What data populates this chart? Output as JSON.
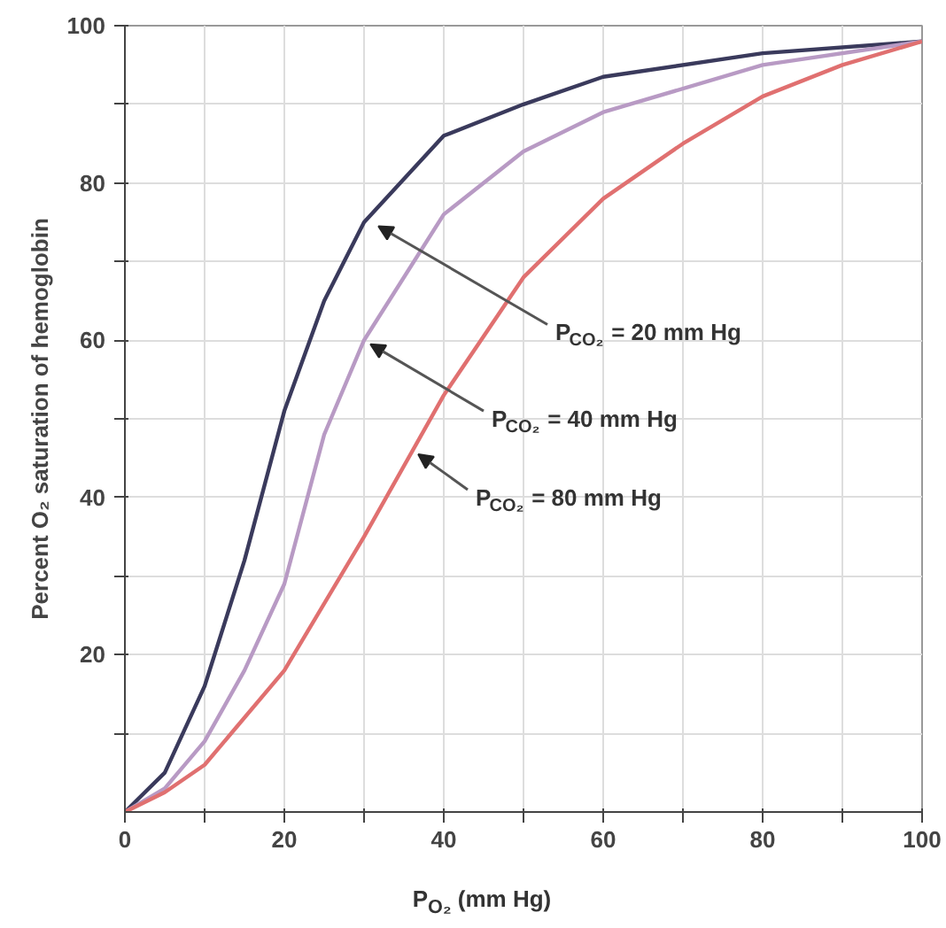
{
  "chart_data": {
    "type": "line",
    "xlabel": "P$_{O₂}$ (mm Hg)",
    "ylabel": "Percent O₂ saturation of hemoglobin",
    "xlim": [
      0,
      100
    ],
    "ylim": [
      0,
      100
    ],
    "xticks": [
      0,
      {
        "value": 10,
        "label": null
      },
      20,
      {
        "value": 30,
        "label": null
      },
      40,
      {
        "value": 50,
        "label": null
      },
      60,
      {
        "value": 70,
        "label": null
      },
      80,
      {
        "value": 90,
        "label": null
      },
      100
    ],
    "yticks": [
      {
        "value": 10,
        "label": null
      },
      20,
      {
        "value": 30,
        "label": null
      },
      40,
      {
        "value": 50,
        "label": null
      },
      60,
      {
        "value": 70,
        "label": null
      },
      80,
      {
        "value": 90,
        "label": null
      },
      100
    ],
    "grid": true,
    "marker": "none",
    "line_style": "solid",
    "series": [
      {
        "color": "#3a3a5c",
        "x": [
          0,
          5,
          10,
          15,
          20,
          25,
          30,
          40,
          50,
          60,
          80,
          100
        ],
        "values": [
          0,
          5,
          16,
          32,
          51,
          65,
          75,
          86,
          90,
          93.5,
          96.5,
          98
        ]
      },
      {
        "color": "#b89ac4",
        "x": [
          0,
          5,
          10,
          15,
          20,
          25,
          30,
          40,
          50,
          60,
          80,
          100
        ],
        "values": [
          0,
          3,
          9,
          18,
          29,
          48,
          60,
          76,
          84,
          89,
          95,
          98
        ]
      },
      {
        "color": "#e07070",
        "x": [
          0,
          5,
          10,
          20,
          30,
          40,
          50,
          60,
          70,
          80,
          90,
          100
        ],
        "values": [
          0,
          2.5,
          6,
          18,
          35,
          53,
          68,
          78,
          85,
          91,
          95,
          98
        ]
      }
    ],
    "annotations": [
      {
        "text": "P$_{CO₂}$ = 20 mm Hg",
        "x": 31,
        "y": 75
      },
      {
        "text": "P$_{CO₂}$ = 40 mm Hg",
        "x": 30,
        "y": 60
      },
      {
        "text": "P$_{CO₂}$ = 80 mm Hg",
        "x": 36,
        "y": 46
      }
    ]
  }
}
